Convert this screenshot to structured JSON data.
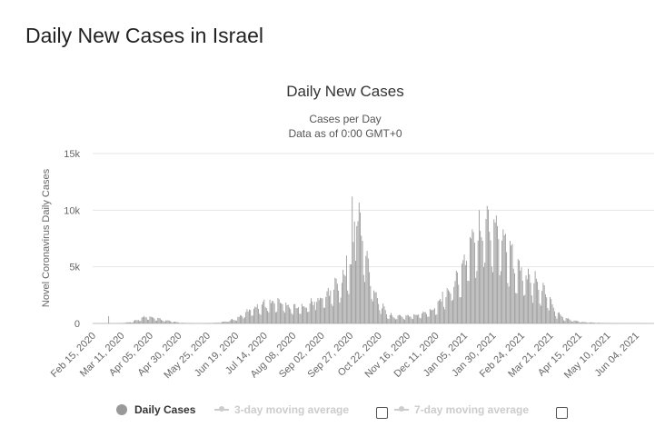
{
  "page": {
    "title": "Daily New Cases in Israel"
  },
  "chart_data": {
    "type": "bar",
    "title": "Daily New Cases",
    "subtitle_lines": [
      "Cases per Day",
      "Data as of 0:00 GMT+0"
    ],
    "ylabel": "Novel Coronavirus Daily Cases",
    "ylim": [
      0,
      15000
    ],
    "yticks": [
      0,
      5000,
      10000,
      15000
    ],
    "ytick_labels": [
      "0",
      "5k",
      "10k",
      "15k"
    ],
    "x_start": "2020-02-15",
    "x_end": "2021-06-20",
    "xtick_labels": [
      "Feb 15, 2020",
      "Mar 11, 2020",
      "Apr 05, 2020",
      "Apr 30, 2020",
      "May 25, 2020",
      "Jun 19, 2020",
      "Jul 14, 2020",
      "Aug 08, 2020",
      "Sep 02, 2020",
      "Sep 27, 2020",
      "Oct 22, 2020",
      "Nov 16, 2020",
      "Dec 11, 2020",
      "Jan 05, 2021",
      "Jan 30, 2021",
      "Feb 24, 2021",
      "Mar 21, 2021",
      "Apr 15, 2021",
      "May 10, 2021",
      "Jun 04, 2021"
    ],
    "series": [
      {
        "name": "Daily Cases",
        "color": "#999999",
        "points": [
          [
            0,
            0
          ],
          [
            20,
            0
          ],
          [
            28,
            40
          ],
          [
            35,
            150
          ],
          [
            40,
            350
          ],
          [
            45,
            550
          ],
          [
            49,
            650
          ],
          [
            52,
            550
          ],
          [
            56,
            450
          ],
          [
            60,
            350
          ],
          [
            66,
            250
          ],
          [
            72,
            120
          ],
          [
            80,
            40
          ],
          [
            90,
            15
          ],
          [
            100,
            20
          ],
          [
            110,
            60
          ],
          [
            115,
            150
          ],
          [
            120,
            250
          ],
          [
            126,
            450
          ],
          [
            132,
            800
          ],
          [
            138,
            1200
          ],
          [
            144,
            1500
          ],
          [
            150,
            1700
          ],
          [
            156,
            1800
          ],
          [
            162,
            1900
          ],
          [
            168,
            1700
          ],
          [
            174,
            1500
          ],
          [
            180,
            1400
          ],
          [
            186,
            1600
          ],
          [
            192,
            1800
          ],
          [
            198,
            2000
          ],
          [
            204,
            2500
          ],
          [
            210,
            3000
          ],
          [
            216,
            3600
          ],
          [
            222,
            4300
          ],
          [
            226,
            5200
          ],
          [
            229,
            7200
          ],
          [
            231,
            9500
          ],
          [
            233,
            9000
          ],
          [
            236,
            7500
          ],
          [
            240,
            5300
          ],
          [
            246,
            3000
          ],
          [
            252,
            1600
          ],
          [
            258,
            800
          ],
          [
            264,
            600
          ],
          [
            270,
            650
          ],
          [
            276,
            650
          ],
          [
            282,
            700
          ],
          [
            288,
            900
          ],
          [
            294,
            1100
          ],
          [
            300,
            1400
          ],
          [
            306,
            2200
          ],
          [
            312,
            2900
          ],
          [
            318,
            3800
          ],
          [
            324,
            5000
          ],
          [
            330,
            6500
          ],
          [
            336,
            8000
          ],
          [
            342,
            8800
          ],
          [
            346,
            9000
          ],
          [
            350,
            8700
          ],
          [
            356,
            8000
          ],
          [
            362,
            7000
          ],
          [
            368,
            5500
          ],
          [
            374,
            4500
          ],
          [
            380,
            3900
          ],
          [
            386,
            3600
          ],
          [
            392,
            3100
          ],
          [
            398,
            2500
          ],
          [
            402,
            1500
          ],
          [
            406,
            900
          ],
          [
            412,
            500
          ],
          [
            418,
            300
          ],
          [
            424,
            200
          ],
          [
            430,
            120
          ],
          [
            440,
            60
          ],
          [
            450,
            30
          ],
          [
            460,
            15
          ],
          [
            470,
            10
          ],
          [
            481,
            10
          ]
        ]
      },
      {
        "name": "3-day moving average"
      },
      {
        "name": "7-day moving average"
      }
    ],
    "annotated_bars": [
      [
        14,
        650
      ],
      [
        54,
        430
      ],
      [
        196,
        1900
      ],
      [
        222,
        6000
      ],
      [
        227,
        11200
      ],
      [
        229,
        9000
      ],
      [
        231,
        8600
      ],
      [
        306,
        2800
      ],
      [
        338,
        10000
      ]
    ]
  },
  "legend": {
    "items": [
      {
        "label": "Daily Cases",
        "checkbox": false
      },
      {
        "label": "3-day moving average",
        "checkbox": true
      },
      {
        "label": "7-day moving average",
        "checkbox": true
      }
    ]
  }
}
